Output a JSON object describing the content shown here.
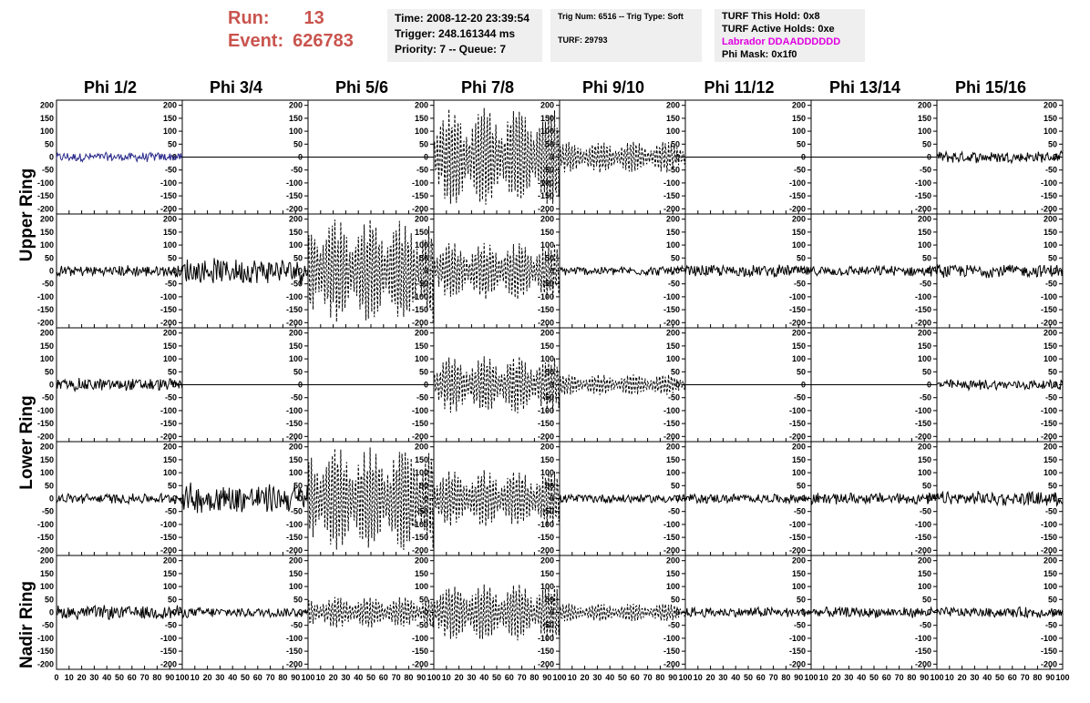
{
  "header": {
    "run_label": "Run:",
    "run_value": "13",
    "event_label": "Event:",
    "event_value": "626783",
    "time": "Time: 2008-12-20 23:39:54",
    "trigger": "Trigger: 248.161344 ms",
    "priority": "Priority: 7 -- Queue: 7",
    "trig_num": "Trig Num: 6516 -- Trig Type: Soft",
    "turf": "TURF: 29793",
    "turf_hold": "TURF This Hold: 0x8",
    "turf_active": "TURF Active Holds: 0xe",
    "labrador": "Labrador DDAADDDDDD",
    "phi_mask": "Phi Mask: 0x1f0"
  },
  "colors": {
    "run_text": "#c9544e",
    "labrador_text": "#e000e0",
    "highlight_trace": "#2a2a8c",
    "trace": "#000000"
  },
  "columns": [
    "Phi 1/2",
    "Phi 3/4",
    "Phi 5/6",
    "Phi 7/8",
    "Phi 9/10",
    "Phi 11/12",
    "Phi 13/14",
    "Phi 15/16"
  ],
  "rows": [
    "Upper Ring",
    "Lower Ring",
    "Nadir Ring"
  ],
  "chart_data": {
    "type": "line",
    "title": "",
    "xlim": [
      0,
      100
    ],
    "ylim": [
      -220,
      220
    ],
    "x_tick_labels": [
      "0",
      "10",
      "20",
      "30",
      "40",
      "50",
      "60",
      "70",
      "80",
      "90",
      "100"
    ],
    "y_tick_labels": [
      "200",
      "150",
      "100",
      "50",
      "0",
      "-50",
      "-100",
      "-150",
      "-200"
    ],
    "grid": false,
    "legend": "none",
    "panel_rows": 5,
    "panel_cols": 8,
    "panels": [
      {
        "row": 0,
        "col": 0,
        "style": "solid",
        "amplitude": 20,
        "color": "#2a2a8c"
      },
      {
        "row": 0,
        "col": 1,
        "style": "flat",
        "amplitude": 0
      },
      {
        "row": 0,
        "col": 2,
        "style": "flat",
        "amplitude": 0
      },
      {
        "row": 0,
        "col": 3,
        "style": "dashed",
        "amplitude": 190
      },
      {
        "row": 0,
        "col": 4,
        "style": "dashed",
        "amplitude": 60
      },
      {
        "row": 0,
        "col": 5,
        "style": "flat",
        "amplitude": 0
      },
      {
        "row": 0,
        "col": 6,
        "style": "flat",
        "amplitude": 0
      },
      {
        "row": 0,
        "col": 7,
        "style": "solid",
        "amplitude": 25
      },
      {
        "row": 1,
        "col": 0,
        "style": "solid",
        "amplitude": 25
      },
      {
        "row": 1,
        "col": 1,
        "style": "solid",
        "amplitude": 55
      },
      {
        "row": 1,
        "col": 2,
        "style": "dashed",
        "amplitude": 200
      },
      {
        "row": 1,
        "col": 3,
        "style": "dashed",
        "amplitude": 110
      },
      {
        "row": 1,
        "col": 4,
        "style": "solid",
        "amplitude": 20
      },
      {
        "row": 1,
        "col": 5,
        "style": "solid",
        "amplitude": 25
      },
      {
        "row": 1,
        "col": 6,
        "style": "solid",
        "amplitude": 22
      },
      {
        "row": 1,
        "col": 7,
        "style": "solid",
        "amplitude": 28
      },
      {
        "row": 2,
        "col": 0,
        "style": "solid",
        "amplitude": 28
      },
      {
        "row": 2,
        "col": 1,
        "style": "flat",
        "amplitude": 0
      },
      {
        "row": 2,
        "col": 2,
        "style": "flat",
        "amplitude": 0
      },
      {
        "row": 2,
        "col": 3,
        "style": "dashed",
        "amplitude": 110
      },
      {
        "row": 2,
        "col": 4,
        "style": "dashed",
        "amplitude": 40
      },
      {
        "row": 2,
        "col": 5,
        "style": "flat",
        "amplitude": 0
      },
      {
        "row": 2,
        "col": 6,
        "style": "flat",
        "amplitude": 0
      },
      {
        "row": 2,
        "col": 7,
        "style": "solid",
        "amplitude": 22
      },
      {
        "row": 3,
        "col": 0,
        "style": "solid",
        "amplitude": 22
      },
      {
        "row": 3,
        "col": 1,
        "style": "solid",
        "amplitude": 65
      },
      {
        "row": 3,
        "col": 2,
        "style": "dashed",
        "amplitude": 200
      },
      {
        "row": 3,
        "col": 3,
        "style": "dashed",
        "amplitude": 110
      },
      {
        "row": 3,
        "col": 4,
        "style": "solid",
        "amplitude": 20
      },
      {
        "row": 3,
        "col": 5,
        "style": "solid",
        "amplitude": 20
      },
      {
        "row": 3,
        "col": 6,
        "style": "solid",
        "amplitude": 25
      },
      {
        "row": 3,
        "col": 7,
        "style": "solid",
        "amplitude": 30
      },
      {
        "row": 4,
        "col": 0,
        "style": "solid",
        "amplitude": 30
      },
      {
        "row": 4,
        "col": 1,
        "style": "solid",
        "amplitude": 22
      },
      {
        "row": 4,
        "col": 2,
        "style": "dashed",
        "amplitude": 60
      },
      {
        "row": 4,
        "col": 3,
        "style": "dashed",
        "amplitude": 110
      },
      {
        "row": 4,
        "col": 4,
        "style": "dashed",
        "amplitude": 35
      },
      {
        "row": 4,
        "col": 5,
        "style": "solid",
        "amplitude": 22
      },
      {
        "row": 4,
        "col": 6,
        "style": "solid",
        "amplitude": 22
      },
      {
        "row": 4,
        "col": 7,
        "style": "solid",
        "amplitude": 22
      }
    ]
  }
}
